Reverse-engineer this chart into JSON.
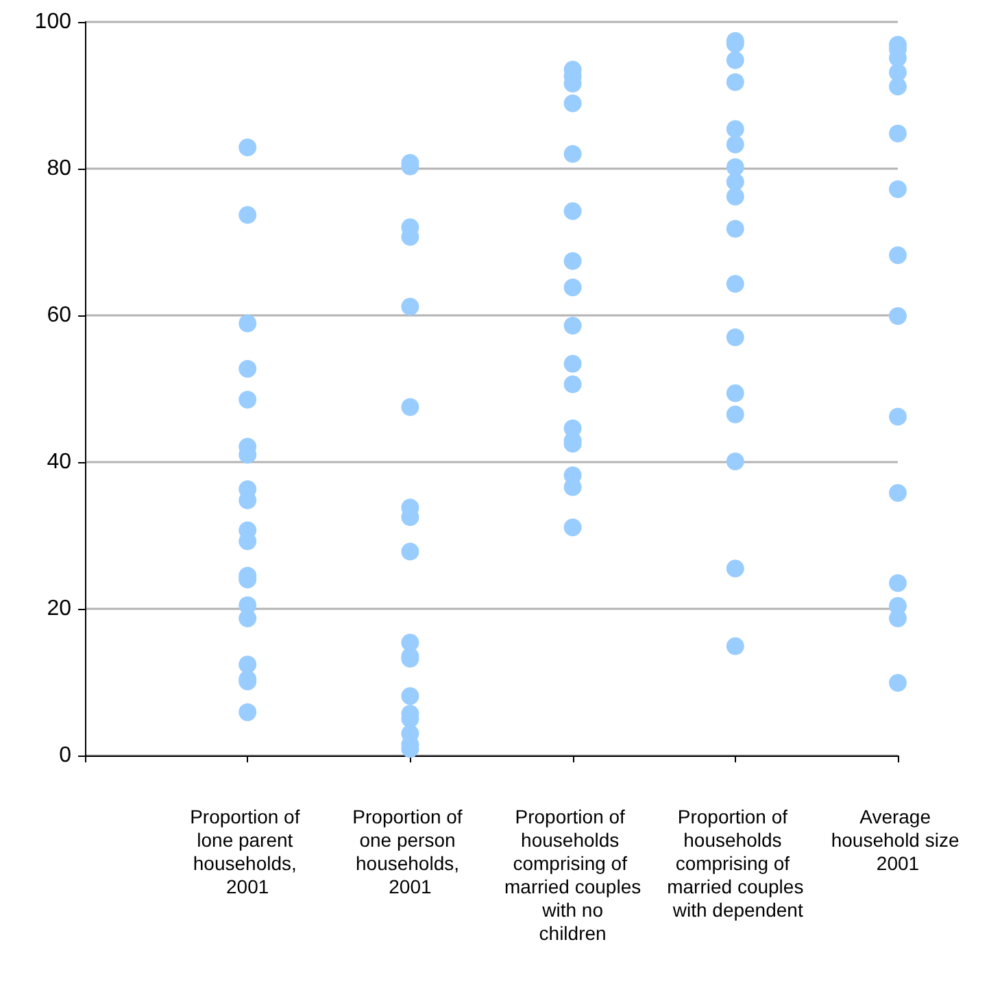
{
  "chart_data": {
    "type": "scatter",
    "categories": [
      null,
      "Proportion of lone parent households, 2001",
      "Proportion of one person households, 2001",
      "Proportion of households comprising of married couples with no children",
      "Proportion of households comprising of married couples with dependent",
      "Average household size 2001"
    ],
    "series": [
      {
        "color": "#99ccff",
        "x": [
          "Proportion of lone parent households, 2001",
          "Proportion of lone parent households, 2001",
          "Proportion of lone parent households, 2001",
          "Proportion of lone parent households, 2001",
          "Proportion of lone parent households, 2001",
          "Proportion of lone parent households, 2001",
          "Proportion of lone parent households, 2001",
          "Proportion of lone parent households, 2001",
          "Proportion of lone parent households, 2001",
          "Proportion of lone parent households, 2001",
          "Proportion of lone parent households, 2001",
          "Proportion of lone parent households, 2001",
          "Proportion of lone parent households, 2001",
          "Proportion of lone parent households, 2001",
          "Proportion of lone parent households, 2001",
          "Proportion of lone parent households, 2001",
          "Proportion of lone parent households, 2001",
          "Proportion of lone parent households, 2001",
          "Proportion of lone parent households, 2001",
          "Proportion of one person households, 2001",
          "Proportion of one person households, 2001",
          "Proportion of one person households, 2001",
          "Proportion of one person households, 2001",
          "Proportion of one person households, 2001",
          "Proportion of one person households, 2001",
          "Proportion of one person households, 2001",
          "Proportion of one person households, 2001",
          "Proportion of one person households, 2001",
          "Proportion of one person households, 2001",
          "Proportion of one person households, 2001",
          "Proportion of one person households, 2001",
          "Proportion of one person households, 2001",
          "Proportion of one person households, 2001",
          "Proportion of one person households, 2001",
          "Proportion of one person households, 2001",
          "Proportion of one person households, 2001",
          "Proportion of one person households, 2001",
          "Proportion of households comprising of married couples with no children",
          "Proportion of households comprising of married couples with no children",
          "Proportion of households comprising of married couples with no children",
          "Proportion of households comprising of married couples with no children",
          "Proportion of households comprising of married couples with no children",
          "Proportion of households comprising of married couples with no children",
          "Proportion of households comprising of married couples with no children",
          "Proportion of households comprising of married couples with no children",
          "Proportion of households comprising of married couples with no children",
          "Proportion of households comprising of married couples with no children",
          "Proportion of households comprising of married couples with no children",
          "Proportion of households comprising of married couples with no children",
          "Proportion of households comprising of married couples with no children",
          "Proportion of households comprising of married couples with no children",
          "Proportion of households comprising of married couples with no children",
          "Proportion of households comprising of married couples with no children",
          "Proportion of households comprising of married couples with no children",
          "Proportion of households comprising of married couples with dependent",
          "Proportion of households comprising of married couples with dependent",
          "Proportion of households comprising of married couples with dependent",
          "Proportion of households comprising of married couples with dependent",
          "Proportion of households comprising of married couples with dependent",
          "Proportion of households comprising of married couples with dependent",
          "Proportion of households comprising of married couples with dependent",
          "Proportion of households comprising of married couples with dependent",
          "Proportion of households comprising of married couples with dependent",
          "Proportion of households comprising of married couples with dependent",
          "Proportion of households comprising of married couples with dependent",
          "Proportion of households comprising of married couples with dependent",
          "Proportion of households comprising of married couples with dependent",
          "Proportion of households comprising of married couples with dependent",
          "Proportion of households comprising of married couples with dependent",
          "Proportion of households comprising of married couples with dependent",
          "Proportion of households comprising of married couples with dependent",
          "Average household size 2001",
          "Average household size 2001",
          "Average household size 2001",
          "Average household size 2001",
          "Average household size 2001",
          "Average household size 2001",
          "Average household size 2001",
          "Average household size 2001",
          "Average household size 2001",
          "Average household size 2001",
          "Average household size 2001",
          "Average household size 2001",
          "Average household size 2001",
          "Average household size 2001",
          "Average household size 2001"
        ],
        "values": [
          82.9,
          73.7,
          58.9,
          52.7,
          48.5,
          42.1,
          41.0,
          36.3,
          34.8,
          30.7,
          29.2,
          24.5,
          24.0,
          20.5,
          18.7,
          12.4,
          10.4,
          10.1,
          5.9,
          80.8,
          80.3,
          72.0,
          70.7,
          61.2,
          47.5,
          33.8,
          32.5,
          27.8,
          15.4,
          13.5,
          13.2,
          8.1,
          5.7,
          5.0,
          3.0,
          1.5,
          0.9,
          93.5,
          92.6,
          91.6,
          88.9,
          82.0,
          74.2,
          67.4,
          63.8,
          58.6,
          53.4,
          50.6,
          44.6,
          42.9,
          42.5,
          38.2,
          36.6,
          31.1,
          97.4,
          97.0,
          94.8,
          91.8,
          85.4,
          83.3,
          80.2,
          78.2,
          76.2,
          71.8,
          64.3,
          57.0,
          49.4,
          46.5,
          40.1,
          25.5,
          14.9,
          96.9,
          96.3,
          95.1,
          93.1,
          91.2,
          84.8,
          77.2,
          68.2,
          59.9,
          46.2,
          35.8,
          23.5,
          20.4,
          18.7,
          9.9
        ]
      }
    ],
    "ylim": [
      0,
      100
    ],
    "yticks": [
      0,
      20,
      40,
      60,
      80,
      100
    ],
    "grid": "y",
    "marker": "circle"
  }
}
